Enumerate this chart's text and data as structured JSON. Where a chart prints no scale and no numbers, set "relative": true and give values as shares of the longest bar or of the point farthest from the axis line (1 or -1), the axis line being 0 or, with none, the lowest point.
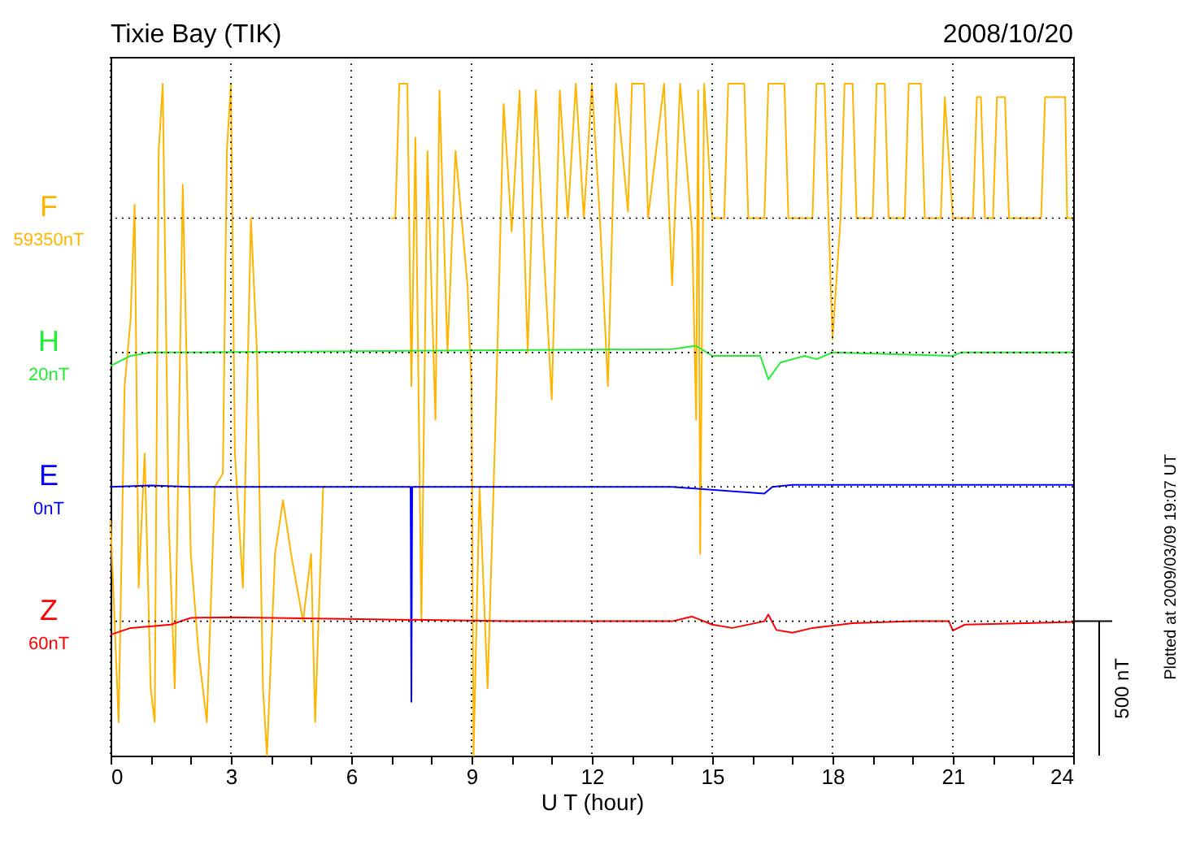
{
  "chart_data": {
    "type": "line",
    "relative": true,
    "title": "Tixie Bay (TIK)",
    "subtitle": "2008/10/20",
    "xlabel": "U T (hour)",
    "xlim": [
      0,
      24
    ],
    "xticks": [
      0,
      {
        "value": 1,
        "label": null
      },
      {
        "value": 2,
        "label": null
      },
      3,
      {
        "value": 4,
        "label": null
      },
      {
        "value": 5,
        "label": null
      },
      6,
      {
        "value": 7,
        "label": null
      },
      {
        "value": 8,
        "label": null
      },
      9,
      {
        "value": 10,
        "label": null
      },
      {
        "value": 11,
        "label": null
      },
      12,
      {
        "value": 13,
        "label": null
      },
      {
        "value": 14,
        "label": null
      },
      15,
      {
        "value": 16,
        "label": null
      },
      {
        "value": 17,
        "label": null
      },
      18,
      {
        "value": 19,
        "label": null
      },
      {
        "value": 20,
        "label": null
      },
      21,
      {
        "value": 22,
        "label": null
      },
      {
        "value": 23,
        "label": null
      },
      24
    ],
    "grid": "x",
    "legend": false,
    "series": [
      {
        "name": "F",
        "color": "#ffb400",
        "x": [
          0.0,
          0.2,
          0.35,
          0.5,
          0.6,
          0.7,
          0.85,
          1.0,
          1.1,
          1.2,
          1.3,
          1.45,
          1.6,
          1.8,
          2.0,
          2.2,
          2.4,
          2.6,
          2.8,
          2.9,
          3.0,
          3.1,
          3.3,
          3.5,
          3.65,
          3.8,
          3.9,
          4.1,
          4.3,
          4.5,
          4.8,
          5.0,
          5.1,
          5.3,
          6.0,
          7.0,
          7.1,
          7.2,
          7.4,
          7.5,
          7.6,
          7.75,
          7.9,
          8.1,
          8.2,
          8.4,
          8.6,
          8.9,
          9.0,
          9.05,
          9.2,
          9.4,
          9.6,
          9.8,
          10.0,
          10.2,
          10.4,
          10.6,
          10.8,
          11.0,
          11.2,
          11.4,
          11.6,
          11.8,
          12.0,
          12.2,
          12.4,
          12.6,
          12.9,
          13.0,
          13.3,
          13.4,
          13.8,
          14.0,
          14.2,
          14.5,
          14.6,
          14.65,
          14.7,
          14.8,
          15.0,
          15.3,
          15.4,
          15.8,
          15.9,
          16.3,
          16.4,
          16.8,
          16.9,
          17.5,
          17.6,
          17.8,
          17.9,
          18.0,
          18.2,
          18.3,
          18.5,
          18.6,
          19.0,
          19.1,
          19.3,
          19.4,
          19.8,
          19.9,
          20.2,
          20.3,
          20.7,
          20.8,
          21.0,
          21.5,
          21.6,
          21.7,
          21.8,
          22.0,
          22.1,
          22.3,
          22.4,
          23.2,
          23.3,
          23.8,
          23.85,
          24.0
        ],
        "values": [
          0.35,
          0.05,
          0.55,
          0.65,
          0.82,
          0.25,
          0.45,
          0.1,
          0.05,
          0.9,
          1.0,
          0.35,
          0.1,
          0.85,
          0.3,
          0.15,
          0.05,
          0.4,
          0.42,
          0.9,
          1.0,
          0.45,
          0.25,
          0.8,
          0.6,
          0.1,
          0.0,
          0.3,
          0.38,
          0.3,
          0.2,
          0.3,
          0.05,
          0.4,
          null,
          0.8,
          0.8,
          1.0,
          1.0,
          0.55,
          0.92,
          0.2,
          0.9,
          0.5,
          0.99,
          0.6,
          0.9,
          0.7,
          0.55,
          0.0,
          0.4,
          0.1,
          0.5,
          0.97,
          0.78,
          0.99,
          0.6,
          0.99,
          0.75,
          0.53,
          0.99,
          0.8,
          1.0,
          0.8,
          1.0,
          0.8,
          0.55,
          1.0,
          0.81,
          1.0,
          1.0,
          0.8,
          1.0,
          0.7,
          1.0,
          0.78,
          0.5,
          0.99,
          0.3,
          1.0,
          0.8,
          0.8,
          1.0,
          1.0,
          0.8,
          0.8,
          1.0,
          1.0,
          0.8,
          0.8,
          1.0,
          1.0,
          0.8,
          0.62,
          0.8,
          1.0,
          1.0,
          0.8,
          0.8,
          1.0,
          1.0,
          0.8,
          0.8,
          1.0,
          1.0,
          0.8,
          0.8,
          0.98,
          0.8,
          0.8,
          0.98,
          0.98,
          0.8,
          0.8,
          0.98,
          0.98,
          0.8,
          0.8,
          0.98,
          0.98,
          0.8,
          0.8
        ]
      },
      {
        "name": "H",
        "color": "#22ee33",
        "x": [
          0.0,
          0.5,
          1.0,
          14.0,
          14.6,
          15.0,
          15.5,
          16.2,
          16.4,
          16.7,
          17.0,
          17.3,
          17.6,
          18.0,
          21.0,
          21.2,
          24.0
        ],
        "values": [
          0.58,
          0.595,
          0.6,
          0.605,
          0.61,
          0.595,
          0.595,
          0.595,
          0.56,
          0.585,
          0.59,
          0.595,
          0.59,
          0.6,
          0.595,
          0.6,
          0.6
        ]
      },
      {
        "name": "E",
        "color": "#0000ff",
        "x": [
          0.0,
          1.0,
          2.0,
          7.48,
          7.5,
          7.52,
          14.0,
          16.3,
          16.5,
          17.0,
          24.0
        ],
        "values": [
          0.4,
          0.402,
          0.4,
          0.4,
          0.08,
          0.4,
          0.4,
          0.39,
          0.4,
          0.403,
          0.403
        ]
      },
      {
        "name": "Z",
        "color": "#ff0000",
        "x": [
          0.0,
          0.5,
          1.5,
          2.0,
          3.0,
          10.0,
          14.0,
          14.5,
          15.0,
          15.5,
          16.3,
          16.4,
          16.6,
          17.0,
          17.5,
          18.5,
          20.0,
          20.9,
          21.0,
          21.3,
          24.0
        ],
        "values": [
          0.18,
          0.19,
          0.195,
          0.205,
          0.206,
          0.2,
          0.2,
          0.207,
          0.195,
          0.19,
          0.2,
          0.21,
          0.187,
          0.183,
          0.19,
          0.197,
          0.2,
          0.2,
          0.186,
          0.195,
          0.199
        ]
      }
    ],
    "ref_lines": [
      {
        "axis": "y",
        "value": 0.8,
        "label": "59350nT",
        "line_style": "dotted"
      },
      {
        "axis": "y",
        "value": 0.6,
        "label": "20nT",
        "line_style": "dotted"
      },
      {
        "axis": "y",
        "value": 0.4,
        "label": "0nT",
        "line_style": "dotted"
      },
      {
        "axis": "y",
        "value": 0.2,
        "label": "60nT",
        "line_style": "dotted"
      }
    ],
    "annotations": [
      "500 nT",
      "Plotted at 2009/03/09 19:07 UT"
    ]
  }
}
